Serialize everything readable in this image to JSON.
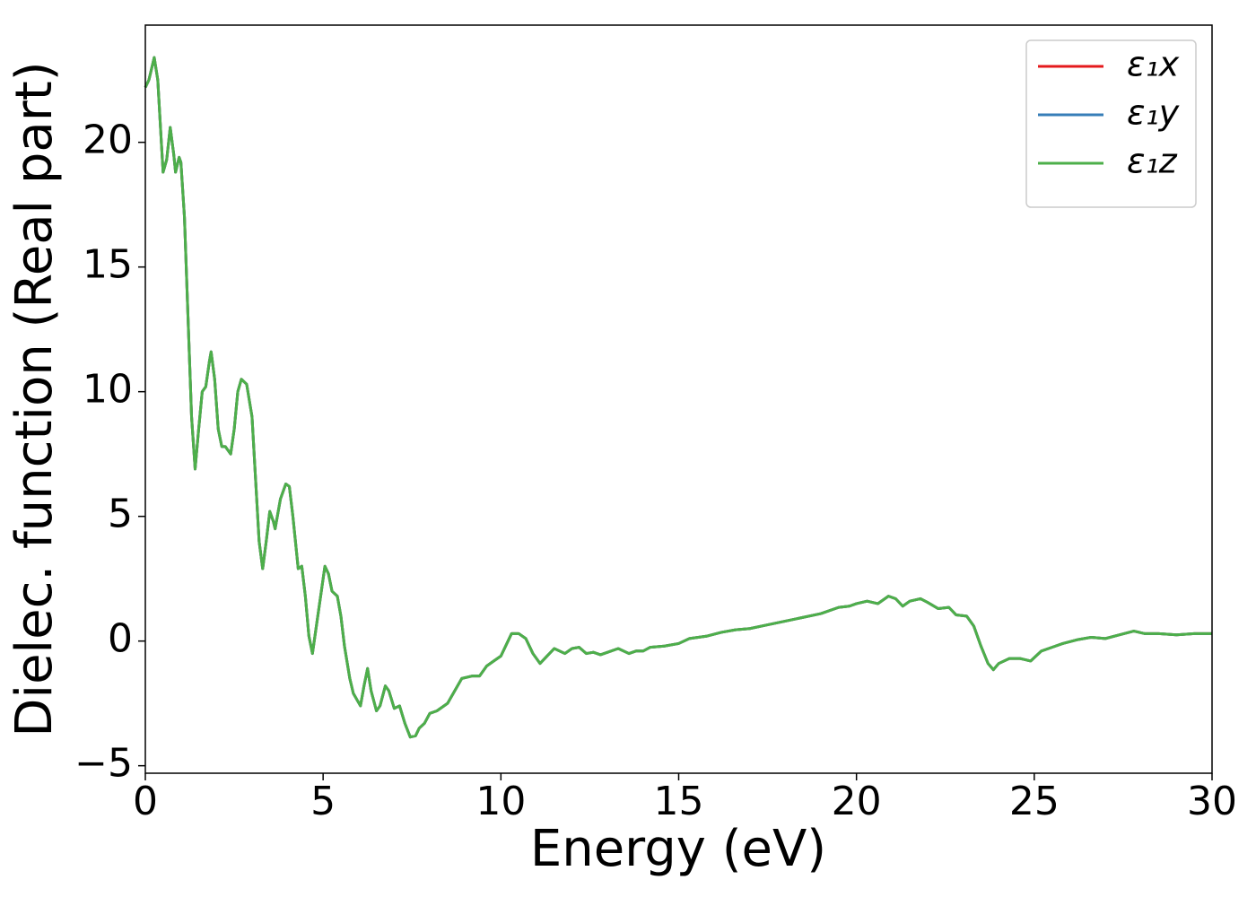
{
  "chart_data": {
    "type": "line",
    "x_label": "Energy (eV)",
    "y_label": "Dielec. function (Real part)",
    "x": [
      0,
      0.1,
      0.25,
      0.35,
      0.45,
      0.5,
      0.6,
      0.7,
      0.8,
      0.85,
      0.95,
      1.0,
      1.1,
      1.2,
      1.3,
      1.4,
      1.5,
      1.6,
      1.7,
      1.8,
      1.85,
      1.95,
      2.05,
      2.15,
      2.25,
      2.4,
      2.5,
      2.6,
      2.7,
      2.85,
      3.0,
      3.1,
      3.2,
      3.3,
      3.4,
      3.5,
      3.6,
      3.65,
      3.8,
      3.95,
      4.05,
      4.15,
      4.3,
      4.4,
      4.5,
      4.6,
      4.7,
      4.8,
      4.95,
      5.05,
      5.15,
      5.25,
      5.4,
      5.5,
      5.6,
      5.75,
      5.85,
      6.05,
      6.15,
      6.25,
      6.35,
      6.5,
      6.6,
      6.75,
      6.85,
      7.0,
      7.15,
      7.3,
      7.45,
      7.6,
      7.7,
      7.85,
      8.0,
      8.2,
      8.5,
      8.7,
      8.9,
      9.2,
      9.4,
      9.6,
      9.8,
      10.0,
      10.3,
      10.5,
      10.7,
      10.9,
      11.1,
      11.3,
      11.5,
      11.8,
      12.0,
      12.2,
      12.4,
      12.6,
      12.8,
      13.0,
      13.3,
      13.6,
      13.8,
      14.0,
      14.2,
      14.6,
      15.0,
      15.3,
      15.8,
      16.2,
      16.6,
      17.0,
      17.5,
      18.0,
      18.5,
      19.0,
      19.5,
      19.8,
      20.0,
      20.3,
      20.6,
      20.9,
      21.1,
      21.3,
      21.5,
      21.8,
      22.0,
      22.3,
      22.6,
      22.8,
      23.1,
      23.3,
      23.5,
      23.7,
      23.85,
      24.0,
      24.3,
      24.6,
      24.9,
      25.2,
      25.5,
      25.8,
      26.2,
      26.6,
      27.0,
      27.4,
      27.8,
      28.1,
      28.5,
      29.0,
      29.5,
      30.0
    ],
    "series": [
      {
        "name": "ε₁x",
        "color": "#e41a1c",
        "values": [
          22.2,
          22.5,
          23.4,
          22.5,
          20,
          18.8,
          19.3,
          20.6,
          19.5,
          18.8,
          19.4,
          19.2,
          17,
          13,
          9,
          6.9,
          8.5,
          10,
          10.2,
          11.2,
          11.6,
          10.5,
          8.5,
          7.8,
          7.8,
          7.5,
          8.5,
          10,
          10.5,
          10.3,
          9,
          6.5,
          4,
          2.9,
          4,
          5.2,
          4.8,
          4.5,
          5.7,
          6.3,
          6.2,
          5,
          2.9,
          3,
          1.8,
          0.2,
          -0.5,
          0.5,
          2,
          3,
          2.7,
          2,
          1.8,
          1,
          -0.2,
          -1.5,
          -2.1,
          -2.6,
          -1.8,
          -1.1,
          -2,
          -2.8,
          -2.6,
          -1.8,
          -2,
          -2.7,
          -2.6,
          -3.3,
          -3.85,
          -3.8,
          -3.5,
          -3.3,
          -2.9,
          -2.8,
          -2.5,
          -2.0,
          -1.5,
          -1.4,
          -1.4,
          -1.0,
          -0.8,
          -0.6,
          0.3,
          0.3,
          0.1,
          -0.5,
          -0.9,
          -0.6,
          -0.3,
          -0.5,
          -0.3,
          -0.25,
          -0.5,
          -0.45,
          -0.55,
          -0.45,
          -0.3,
          -0.5,
          -0.4,
          -0.4,
          -0.25,
          -0.2,
          -0.1,
          0.1,
          0.2,
          0.35,
          0.45,
          0.5,
          0.65,
          0.8,
          0.95,
          1.1,
          1.35,
          1.4,
          1.5,
          1.6,
          1.5,
          1.8,
          1.7,
          1.4,
          1.6,
          1.7,
          1.55,
          1.3,
          1.35,
          1.05,
          1.0,
          0.6,
          -0.2,
          -0.9,
          -1.15,
          -0.9,
          -0.7,
          -0.7,
          -0.8,
          -0.4,
          -0.25,
          -0.1,
          0.05,
          0.15,
          0.1,
          0.25,
          0.4,
          0.3,
          0.3,
          0.25,
          0.3,
          0.3
        ]
      },
      {
        "name": "ε₁y",
        "color": "#377eb8",
        "values": [
          22.2,
          22.5,
          23.4,
          22.5,
          20,
          18.8,
          19.3,
          20.6,
          19.5,
          18.8,
          19.4,
          19.2,
          17,
          13,
          9,
          6.9,
          8.5,
          10,
          10.2,
          11.2,
          11.6,
          10.5,
          8.5,
          7.8,
          7.8,
          7.5,
          8.5,
          10,
          10.5,
          10.3,
          9,
          6.5,
          4,
          2.9,
          4,
          5.2,
          4.8,
          4.5,
          5.7,
          6.3,
          6.2,
          5,
          2.9,
          3,
          1.8,
          0.2,
          -0.5,
          0.5,
          2,
          3,
          2.7,
          2,
          1.8,
          1,
          -0.2,
          -1.5,
          -2.1,
          -2.6,
          -1.8,
          -1.1,
          -2,
          -2.8,
          -2.6,
          -1.8,
          -2,
          -2.7,
          -2.6,
          -3.3,
          -3.85,
          -3.8,
          -3.5,
          -3.3,
          -2.9,
          -2.8,
          -2.5,
          -2.0,
          -1.5,
          -1.4,
          -1.4,
          -1.0,
          -0.8,
          -0.6,
          0.3,
          0.3,
          0.1,
          -0.5,
          -0.9,
          -0.6,
          -0.3,
          -0.5,
          -0.3,
          -0.25,
          -0.5,
          -0.45,
          -0.55,
          -0.45,
          -0.3,
          -0.5,
          -0.4,
          -0.4,
          -0.25,
          -0.2,
          -0.1,
          0.1,
          0.2,
          0.35,
          0.45,
          0.5,
          0.65,
          0.8,
          0.95,
          1.1,
          1.35,
          1.4,
          1.5,
          1.6,
          1.5,
          1.8,
          1.7,
          1.4,
          1.6,
          1.7,
          1.55,
          1.3,
          1.35,
          1.05,
          1.0,
          0.6,
          -0.2,
          -0.9,
          -1.15,
          -0.9,
          -0.7,
          -0.7,
          -0.8,
          -0.4,
          -0.25,
          -0.1,
          0.05,
          0.15,
          0.1,
          0.25,
          0.4,
          0.3,
          0.3,
          0.25,
          0.3,
          0.3
        ]
      },
      {
        "name": "ε₁z",
        "color": "#4daf4a",
        "values": [
          22.2,
          22.5,
          23.4,
          22.5,
          20,
          18.8,
          19.3,
          20.6,
          19.5,
          18.8,
          19.4,
          19.2,
          17,
          13,
          9,
          6.9,
          8.5,
          10,
          10.2,
          11.2,
          11.6,
          10.5,
          8.5,
          7.8,
          7.8,
          7.5,
          8.5,
          10,
          10.5,
          10.3,
          9,
          6.5,
          4,
          2.9,
          4,
          5.2,
          4.8,
          4.5,
          5.7,
          6.3,
          6.2,
          5,
          2.9,
          3,
          1.8,
          0.2,
          -0.5,
          0.5,
          2,
          3,
          2.7,
          2,
          1.8,
          1,
          -0.2,
          -1.5,
          -2.1,
          -2.6,
          -1.8,
          -1.1,
          -2,
          -2.8,
          -2.6,
          -1.8,
          -2,
          -2.7,
          -2.6,
          -3.3,
          -3.85,
          -3.8,
          -3.5,
          -3.3,
          -2.9,
          -2.8,
          -2.5,
          -2.0,
          -1.5,
          -1.4,
          -1.4,
          -1.0,
          -0.8,
          -0.6,
          0.3,
          0.3,
          0.1,
          -0.5,
          -0.9,
          -0.6,
          -0.3,
          -0.5,
          -0.3,
          -0.25,
          -0.5,
          -0.45,
          -0.55,
          -0.45,
          -0.3,
          -0.5,
          -0.4,
          -0.4,
          -0.25,
          -0.2,
          -0.1,
          0.1,
          0.2,
          0.35,
          0.45,
          0.5,
          0.65,
          0.8,
          0.95,
          1.1,
          1.35,
          1.4,
          1.5,
          1.6,
          1.5,
          1.8,
          1.7,
          1.4,
          1.6,
          1.7,
          1.55,
          1.3,
          1.35,
          1.05,
          1.0,
          0.6,
          -0.2,
          -0.9,
          -1.15,
          -0.9,
          -0.7,
          -0.7,
          -0.8,
          -0.4,
          -0.25,
          -0.1,
          0.05,
          0.15,
          0.1,
          0.25,
          0.4,
          0.3,
          0.3,
          0.25,
          0.3,
          0.3
        ]
      }
    ],
    "xlim": [
      0,
      30
    ],
    "xticks": [
      0,
      5,
      10,
      15,
      20,
      25,
      30
    ],
    "ylim": [
      -5.3,
      24.7
    ],
    "yticks": [
      {
        "value": -5,
        "label": "−5"
      },
      0,
      5,
      10,
      15,
      20
    ],
    "legend": "upper right"
  }
}
